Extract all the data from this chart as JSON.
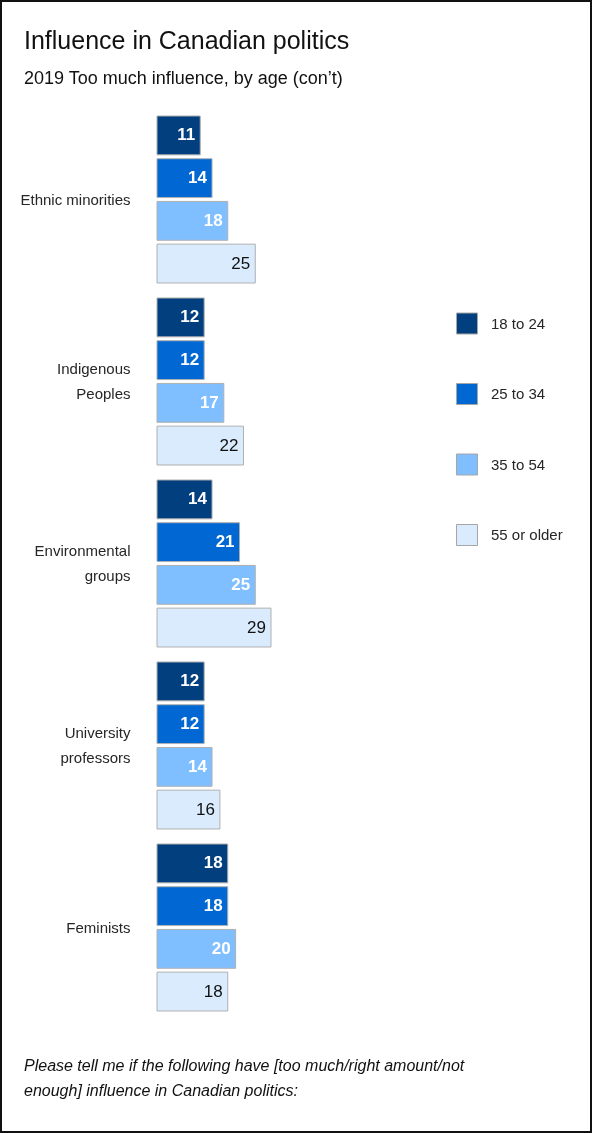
{
  "chart_data": {
    "type": "bar",
    "orientation": "horizontal",
    "title": "Influence in Canadian politics",
    "subtitle": "2019 Too much influence, by age (con’t)",
    "categories": [
      "Ethnic minorities",
      "Indigenous Peoples",
      "Environmental groups",
      "University professors",
      "Feminists"
    ],
    "series": [
      {
        "name": "18 to 24",
        "color": "#023f7e",
        "values": [
          11,
          12,
          14,
          12,
          18
        ]
      },
      {
        "name": "25 to 34",
        "color": "#0067d3",
        "values": [
          14,
          12,
          21,
          12,
          18
        ]
      },
      {
        "name": "35 to 54",
        "color": "#80bfff",
        "values": [
          18,
          17,
          25,
          14,
          20
        ]
      },
      {
        "name": "55 or older",
        "color": "#d9ebfc",
        "values": [
          25,
          22,
          29,
          16,
          18
        ]
      }
    ],
    "data_labels": true,
    "legend": "right",
    "annotations": [
      "Please tell me if the following have [too much/right amount/not enough] influence in Canadian politics:"
    ]
  }
}
